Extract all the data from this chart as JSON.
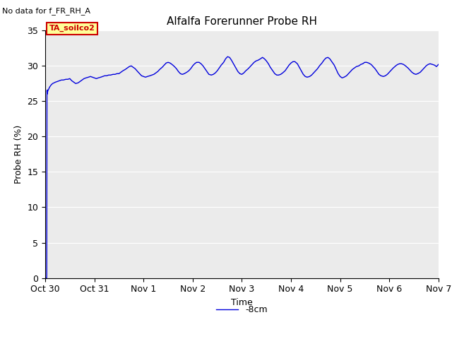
{
  "title": "Alfalfa Forerunner Probe RH",
  "no_data_label": "No data for f_FR_RH_A",
  "ylabel": "Probe RH (%)",
  "xlabel": "Time",
  "ylim": [
    0,
    35
  ],
  "yticks": [
    0,
    5,
    10,
    15,
    20,
    25,
    30,
    35
  ],
  "legend_label": "-8cm",
  "line_color": "#0000dd",
  "annotation_text": "TA_soilco2",
  "annotation_bg": "#ffff99",
  "annotation_fg": "#cc0000",
  "bg_color": "#ebebeb",
  "x_start_days": 0.0,
  "x_end_days": 8.0,
  "xtick_labels": [
    "Oct 30",
    "Oct 31",
    "Nov 1",
    "Nov 2",
    "Nov 3",
    "Nov 4",
    "Nov 5",
    "Nov 6",
    "Nov 7"
  ],
  "xtick_positions": [
    0,
    1,
    2,
    3,
    4,
    5,
    6,
    7,
    8
  ],
  "data_x": [
    0.0,
    0.03,
    0.032,
    0.035,
    0.036,
    0.037,
    0.04,
    0.042,
    0.043,
    0.044,
    0.045,
    0.048,
    0.055,
    0.07,
    0.09,
    0.12,
    0.15,
    0.18,
    0.21,
    0.25,
    0.29,
    0.33,
    0.37,
    0.42,
    0.46,
    0.5,
    0.54,
    0.58,
    0.62,
    0.67,
    0.71,
    0.75,
    0.79,
    0.83,
    0.88,
    0.92,
    0.96,
    1.0,
    1.04,
    1.08,
    1.13,
    1.17,
    1.21,
    1.25,
    1.29,
    1.33,
    1.38,
    1.42,
    1.46,
    1.5,
    1.54,
    1.58,
    1.63,
    1.67,
    1.71,
    1.75,
    1.79,
    1.83,
    1.88,
    1.92,
    1.96,
    2.0,
    2.04,
    2.08,
    2.13,
    2.17,
    2.21,
    2.25,
    2.29,
    2.33,
    2.38,
    2.42,
    2.46,
    2.5,
    2.54,
    2.58,
    2.63,
    2.67,
    2.71,
    2.75,
    2.79,
    2.83,
    2.88,
    2.92,
    2.96,
    3.0,
    3.04,
    3.08,
    3.13,
    3.17,
    3.21,
    3.25,
    3.29,
    3.33,
    3.38,
    3.42,
    3.46,
    3.5,
    3.54,
    3.58,
    3.63,
    3.67,
    3.71,
    3.75,
    3.79,
    3.83,
    3.88,
    3.92,
    3.96,
    4.0,
    4.04,
    4.08,
    4.13,
    4.17,
    4.21,
    4.25,
    4.29,
    4.33,
    4.38,
    4.42,
    4.46,
    4.5,
    4.54,
    4.58,
    4.63,
    4.67,
    4.71,
    4.75,
    4.79,
    4.83,
    4.88,
    4.92,
    4.96,
    5.0,
    5.04,
    5.08,
    5.13,
    5.17,
    5.21,
    5.25,
    5.29,
    5.33,
    5.38,
    5.42,
    5.46,
    5.5,
    5.54,
    5.58,
    5.63,
    5.67,
    5.71,
    5.75,
    5.79,
    5.83,
    5.88,
    5.92,
    5.96,
    6.0,
    6.04,
    6.08,
    6.13,
    6.17,
    6.21,
    6.25,
    6.29,
    6.33,
    6.38,
    6.42,
    6.46,
    6.5,
    6.54,
    6.58,
    6.63,
    6.67,
    6.71,
    6.75,
    6.79,
    6.83,
    6.88,
    6.92,
    6.96,
    7.0,
    7.04,
    7.08,
    7.13,
    7.17,
    7.21,
    7.25,
    7.29,
    7.33,
    7.38,
    7.42,
    7.46,
    7.5,
    7.54,
    7.58,
    7.63,
    7.67,
    7.71,
    7.75,
    7.79,
    7.83,
    7.88,
    7.92,
    7.96,
    8.0
  ],
  "data_y": [
    0.0,
    0.0,
    0.5,
    26.3,
    26.5,
    26.3,
    26.0,
    26.5,
    26.2,
    26.6,
    26.5,
    26.3,
    26.5,
    26.7,
    27.0,
    27.3,
    27.5,
    27.6,
    27.7,
    27.8,
    27.9,
    28.0,
    28.0,
    28.1,
    28.1,
    28.2,
    27.9,
    27.7,
    27.5,
    27.6,
    27.8,
    28.0,
    28.2,
    28.3,
    28.4,
    28.5,
    28.4,
    28.3,
    28.2,
    28.3,
    28.4,
    28.5,
    28.6,
    28.6,
    28.7,
    28.7,
    28.8,
    28.8,
    28.9,
    28.9,
    29.1,
    29.3,
    29.5,
    29.7,
    29.9,
    30.0,
    29.8,
    29.6,
    29.2,
    28.9,
    28.6,
    28.5,
    28.4,
    28.5,
    28.6,
    28.7,
    28.8,
    29.0,
    29.2,
    29.5,
    29.8,
    30.1,
    30.4,
    30.5,
    30.4,
    30.2,
    29.9,
    29.6,
    29.2,
    28.9,
    28.8,
    28.9,
    29.1,
    29.3,
    29.6,
    30.0,
    30.3,
    30.5,
    30.5,
    30.3,
    30.0,
    29.6,
    29.2,
    28.8,
    28.7,
    28.8,
    29.0,
    29.3,
    29.7,
    30.1,
    30.5,
    31.0,
    31.3,
    31.2,
    30.8,
    30.3,
    29.7,
    29.2,
    28.9,
    28.8,
    29.0,
    29.3,
    29.6,
    29.9,
    30.2,
    30.5,
    30.7,
    30.8,
    31.0,
    31.2,
    31.0,
    30.7,
    30.3,
    29.8,
    29.3,
    28.9,
    28.7,
    28.7,
    28.8,
    29.0,
    29.3,
    29.7,
    30.1,
    30.4,
    30.6,
    30.6,
    30.3,
    29.8,
    29.3,
    28.8,
    28.5,
    28.4,
    28.5,
    28.7,
    29.0,
    29.3,
    29.6,
    30.0,
    30.4,
    30.8,
    31.1,
    31.2,
    31.0,
    30.6,
    30.1,
    29.5,
    28.9,
    28.5,
    28.3,
    28.4,
    28.6,
    28.9,
    29.2,
    29.5,
    29.7,
    29.9,
    30.0,
    30.2,
    30.3,
    30.5,
    30.5,
    30.4,
    30.2,
    29.9,
    29.6,
    29.2,
    28.8,
    28.6,
    28.5,
    28.6,
    28.8,
    29.1,
    29.4,
    29.7,
    30.0,
    30.2,
    30.3,
    30.3,
    30.2,
    30.0,
    29.7,
    29.4,
    29.1,
    28.9,
    28.8,
    28.9,
    29.1,
    29.4,
    29.7,
    30.0,
    30.2,
    30.3,
    30.2,
    30.1,
    29.9,
    30.2
  ]
}
